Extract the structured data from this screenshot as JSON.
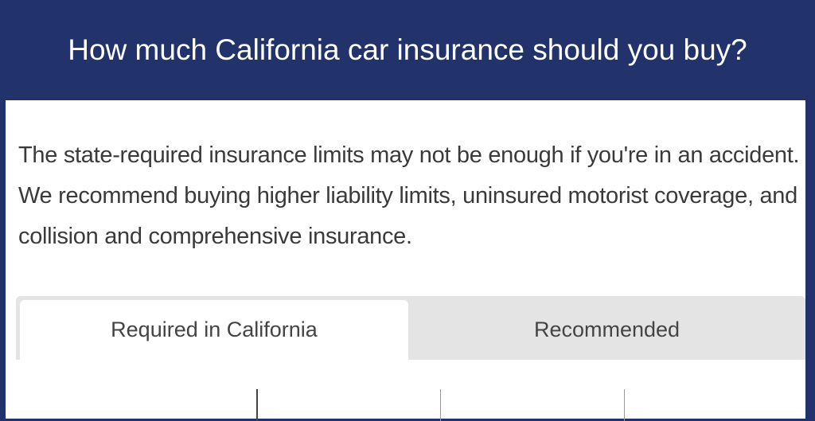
{
  "header": {
    "title": "How much California car insurance should you buy?"
  },
  "intro": {
    "text": "The state-required insurance limits may not be enough if you're in an accident.  We recommend buying higher liability limits, uninsured motorist coverage, and collision and comprehensive insurance."
  },
  "tabs": [
    {
      "label": "Required in California",
      "active": true
    },
    {
      "label": "Recommended",
      "active": false
    }
  ],
  "colors": {
    "header_bg": "#22336b",
    "tabbar_bg": "#e4e4e4",
    "text": "#3a3a3a"
  }
}
